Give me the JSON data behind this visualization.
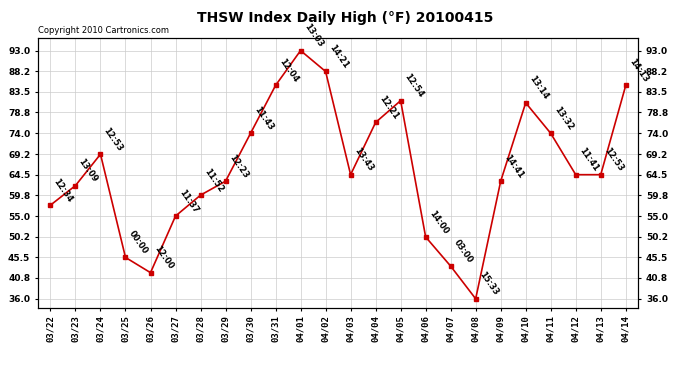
{
  "title": "THSW Index Daily High (°F) 20100415",
  "copyright": "Copyright 2010 Cartronics.com",
  "dates": [
    "03/22",
    "03/23",
    "03/24",
    "03/25",
    "03/26",
    "03/27",
    "03/28",
    "03/29",
    "03/30",
    "03/31",
    "04/01",
    "04/02",
    "04/03",
    "04/04",
    "04/05",
    "04/06",
    "04/07",
    "04/08",
    "04/09",
    "04/10",
    "04/11",
    "04/12",
    "04/13",
    "04/14"
  ],
  "values": [
    57.5,
    62.0,
    69.2,
    45.5,
    42.0,
    55.0,
    59.8,
    63.0,
    74.0,
    85.0,
    93.0,
    88.2,
    64.5,
    76.5,
    81.5,
    50.2,
    43.5,
    36.0,
    63.0,
    81.0,
    74.0,
    64.5,
    64.5,
    85.0
  ],
  "labels": [
    "12:34",
    "13:09",
    "12:53",
    "00:00",
    "12:00",
    "11:37",
    "11:52",
    "12:23",
    "11:43",
    "12:04",
    "13:03",
    "14:21",
    "13:43",
    "12:21",
    "12:54",
    "14:00",
    "03:00",
    "15:33",
    "14:41",
    "13:14",
    "13:32",
    "11:41",
    "12:53",
    "14:13"
  ],
  "line_color": "#cc0000",
  "marker_color": "#cc0000",
  "background_color": "#ffffff",
  "grid_color": "#cccccc",
  "title_fontsize": 10,
  "copyright_fontsize": 6.0,
  "label_fontsize": 6.0,
  "tick_fontsize": 6.5,
  "yticks": [
    36.0,
    40.8,
    45.5,
    50.2,
    55.0,
    59.8,
    64.5,
    69.2,
    74.0,
    78.8,
    83.5,
    88.2,
    93.0
  ],
  "ylim": [
    34.0,
    96.0
  ]
}
